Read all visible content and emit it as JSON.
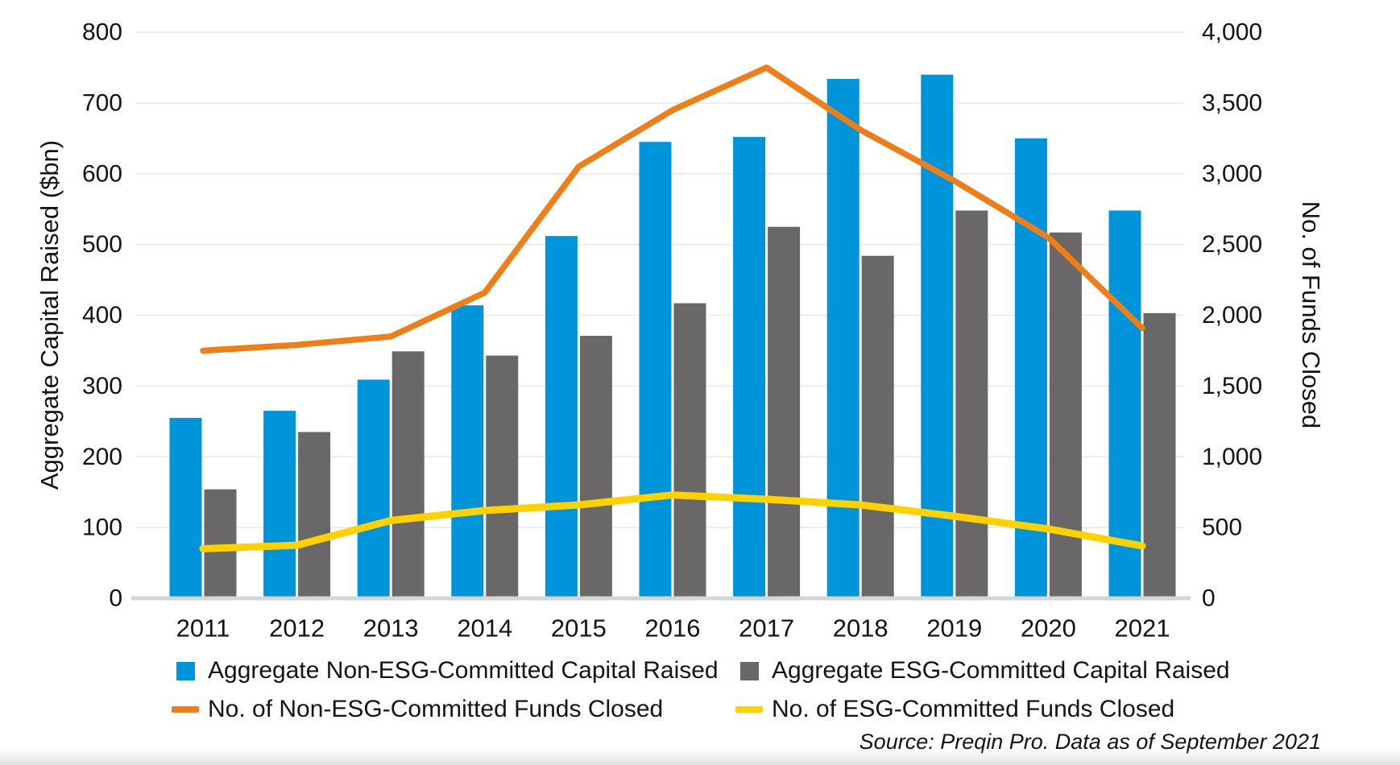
{
  "chart_data": {
    "type": "combo-bar-line",
    "title": "",
    "categories": [
      "2011",
      "2012",
      "2013",
      "2014",
      "2015",
      "2016",
      "2017",
      "2018",
      "2019",
      "2020",
      "2021"
    ],
    "series": [
      {
        "name": "Aggregate Non-ESG-Committed Capital Raised",
        "type": "bar",
        "axis": "left",
        "color": "#0095DA",
        "values": [
          255,
          265,
          309,
          414,
          512,
          645,
          652,
          734,
          740,
          650,
          548
        ]
      },
      {
        "name": "Aggregate ESG-Committed Capital Raised",
        "type": "bar",
        "axis": "left",
        "color": "#696767",
        "values": [
          154,
          235,
          349,
          343,
          371,
          417,
          525,
          484,
          548,
          517,
          403
        ]
      },
      {
        "name": "No. of Non-ESG-Committed Funds Closed",
        "type": "line",
        "axis": "right",
        "color": "#EE7E17",
        "values": [
          1750,
          1790,
          1850,
          2160,
          3050,
          3450,
          3750,
          3310,
          2950,
          2550,
          1910
        ]
      },
      {
        "name": "No. of ESG-Committed Funds Closed",
        "type": "line",
        "axis": "right",
        "color": "#FFD100",
        "values": [
          350,
          375,
          550,
          620,
          660,
          730,
          700,
          660,
          580,
          490,
          370
        ]
      }
    ],
    "left_axis": {
      "title": "Aggregate Capital Raised ($bn)",
      "min": 0,
      "max": 800,
      "step": 100,
      "tick_labels": [
        "0",
        "100",
        "200",
        "300",
        "400",
        "500",
        "600",
        "700",
        "800"
      ]
    },
    "right_axis": {
      "title": "No. of Funds Closed",
      "min": 0,
      "max": 4000,
      "step": 500,
      "tick_labels": [
        "0",
        "500",
        "1,000",
        "1,500",
        "2,000",
        "2,500",
        "3,000",
        "3,500",
        "4,000"
      ]
    },
    "grid": true,
    "legend_position": "bottom"
  },
  "source_note": "Source: Preqin Pro. Data as of September 2021",
  "style": {
    "grid_color": "#ECECEC",
    "baseline_color": "#D6D6D6",
    "text_color": "#141414"
  }
}
